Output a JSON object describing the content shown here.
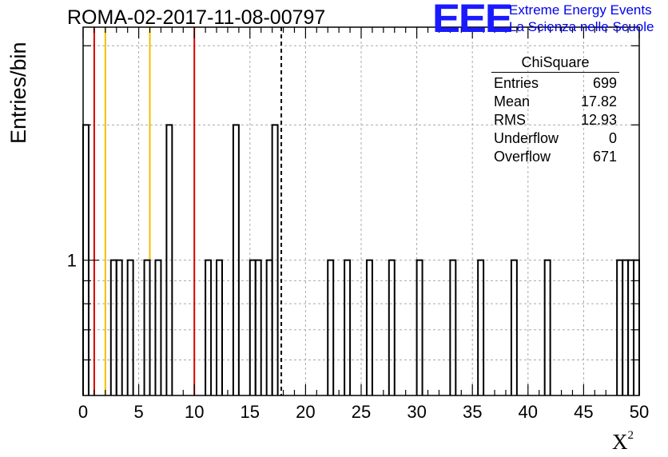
{
  "chart_data": {
    "type": "histogram",
    "title": "ROMA-02-2017-11-08-00797",
    "xlabel": "X",
    "xlabel_superscript": "2",
    "ylabel": "Entries/bin",
    "xlim": [
      0,
      50
    ],
    "y_scale": "log",
    "ylim": [
      0.5,
      3.3
    ],
    "x_ticks": [
      "0",
      "5",
      "10",
      "15",
      "20",
      "25",
      "30",
      "35",
      "40",
      "45",
      "50"
    ],
    "y_tick_labels": [
      {
        "value": 1,
        "label": "1"
      }
    ],
    "grid": true,
    "bin_width": 0.5,
    "bins": [
      {
        "x": 0.0,
        "count": 2
      },
      {
        "x": 2.5,
        "count": 1
      },
      {
        "x": 3.0,
        "count": 1
      },
      {
        "x": 4.0,
        "count": 1
      },
      {
        "x": 5.5,
        "count": 1
      },
      {
        "x": 6.5,
        "count": 1
      },
      {
        "x": 7.5,
        "count": 2
      },
      {
        "x": 11.0,
        "count": 1
      },
      {
        "x": 12.0,
        "count": 1
      },
      {
        "x": 13.5,
        "count": 2
      },
      {
        "x": 15.0,
        "count": 1
      },
      {
        "x": 15.5,
        "count": 1
      },
      {
        "x": 16.5,
        "count": 1
      },
      {
        "x": 17.0,
        "count": 2
      },
      {
        "x": 22.0,
        "count": 1
      },
      {
        "x": 23.5,
        "count": 1
      },
      {
        "x": 25.5,
        "count": 1
      },
      {
        "x": 27.5,
        "count": 1
      },
      {
        "x": 30.0,
        "count": 1
      },
      {
        "x": 33.0,
        "count": 1
      },
      {
        "x": 35.5,
        "count": 1
      },
      {
        "x": 38.5,
        "count": 1
      },
      {
        "x": 41.5,
        "count": 1
      },
      {
        "x": 48.0,
        "count": 1
      },
      {
        "x": 48.5,
        "count": 1
      },
      {
        "x": 49.0,
        "count": 1
      },
      {
        "x": 49.5,
        "count": 1
      }
    ],
    "reference_lines": [
      {
        "x": 1.0,
        "color": "#dd0000",
        "style": "solid"
      },
      {
        "x": 2.0,
        "color": "#f0c000",
        "style": "solid"
      },
      {
        "x": 6.0,
        "color": "#f0c000",
        "style": "solid"
      },
      {
        "x": 10.0,
        "color": "#dd0000",
        "style": "solid"
      },
      {
        "x": 17.82,
        "color": "#000000",
        "style": "dashed"
      }
    ],
    "stats": {
      "title": "ChiSquare",
      "rows": [
        {
          "label": "Entries",
          "value": "699"
        },
        {
          "label": "Mean",
          "value": "17.82"
        },
        {
          "label": "RMS",
          "value": "12.93"
        },
        {
          "label": "Underflow",
          "value": "0"
        },
        {
          "label": "Overflow",
          "value": "671"
        }
      ]
    }
  },
  "logo": {
    "mark": "EEE",
    "line1": "Extreme Energy Events",
    "line2": "La Scienza nelle Scuole",
    "color": "#1a1aff"
  }
}
